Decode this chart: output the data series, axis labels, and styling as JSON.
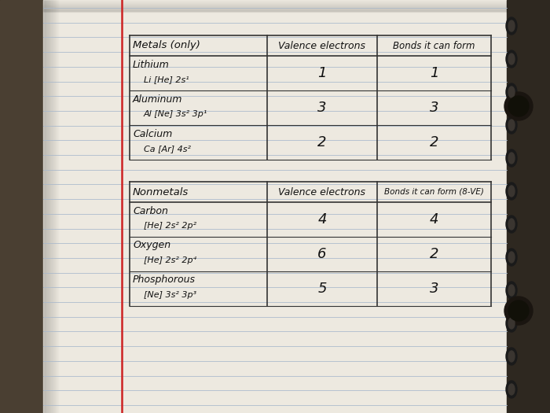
{
  "bg_dark_left": "#5a5040",
  "bg_paper": "#f0ede5",
  "bg_shadow_right": "#c8c0b0",
  "spiral_dark": "#222222",
  "spiral_bg": "#3a3530",
  "red_line_color": "#cc2222",
  "ruled_line_color": "#a8b8cc",
  "table_line_color": "#333333",
  "text_color": "#111111",
  "table1_header": [
    "Metals (only)",
    "Valence electrons",
    "Bonds it can form"
  ],
  "table1_rows": [
    [
      "Lithium",
      "Li [He] 2s¹",
      "1",
      "1"
    ],
    [
      "Aluminum",
      "Al [Ne] 3s² 3p¹",
      "3",
      "3"
    ],
    [
      "Calcium",
      "Ca [Ar] 4s²",
      "2",
      "2"
    ]
  ],
  "table2_header": [
    "Nonmetals",
    "Valence electrons",
    "Bonds it can form (8-VE)"
  ],
  "table2_rows": [
    [
      "Carbon",
      "[He] 2s² 2p²",
      "4",
      "4"
    ],
    [
      "Oxygen",
      "[He] 2s² 2p⁴",
      "6",
      "2"
    ],
    [
      "Phosphorous",
      "[Ne] 3s² 3p³",
      "5",
      "3"
    ]
  ]
}
